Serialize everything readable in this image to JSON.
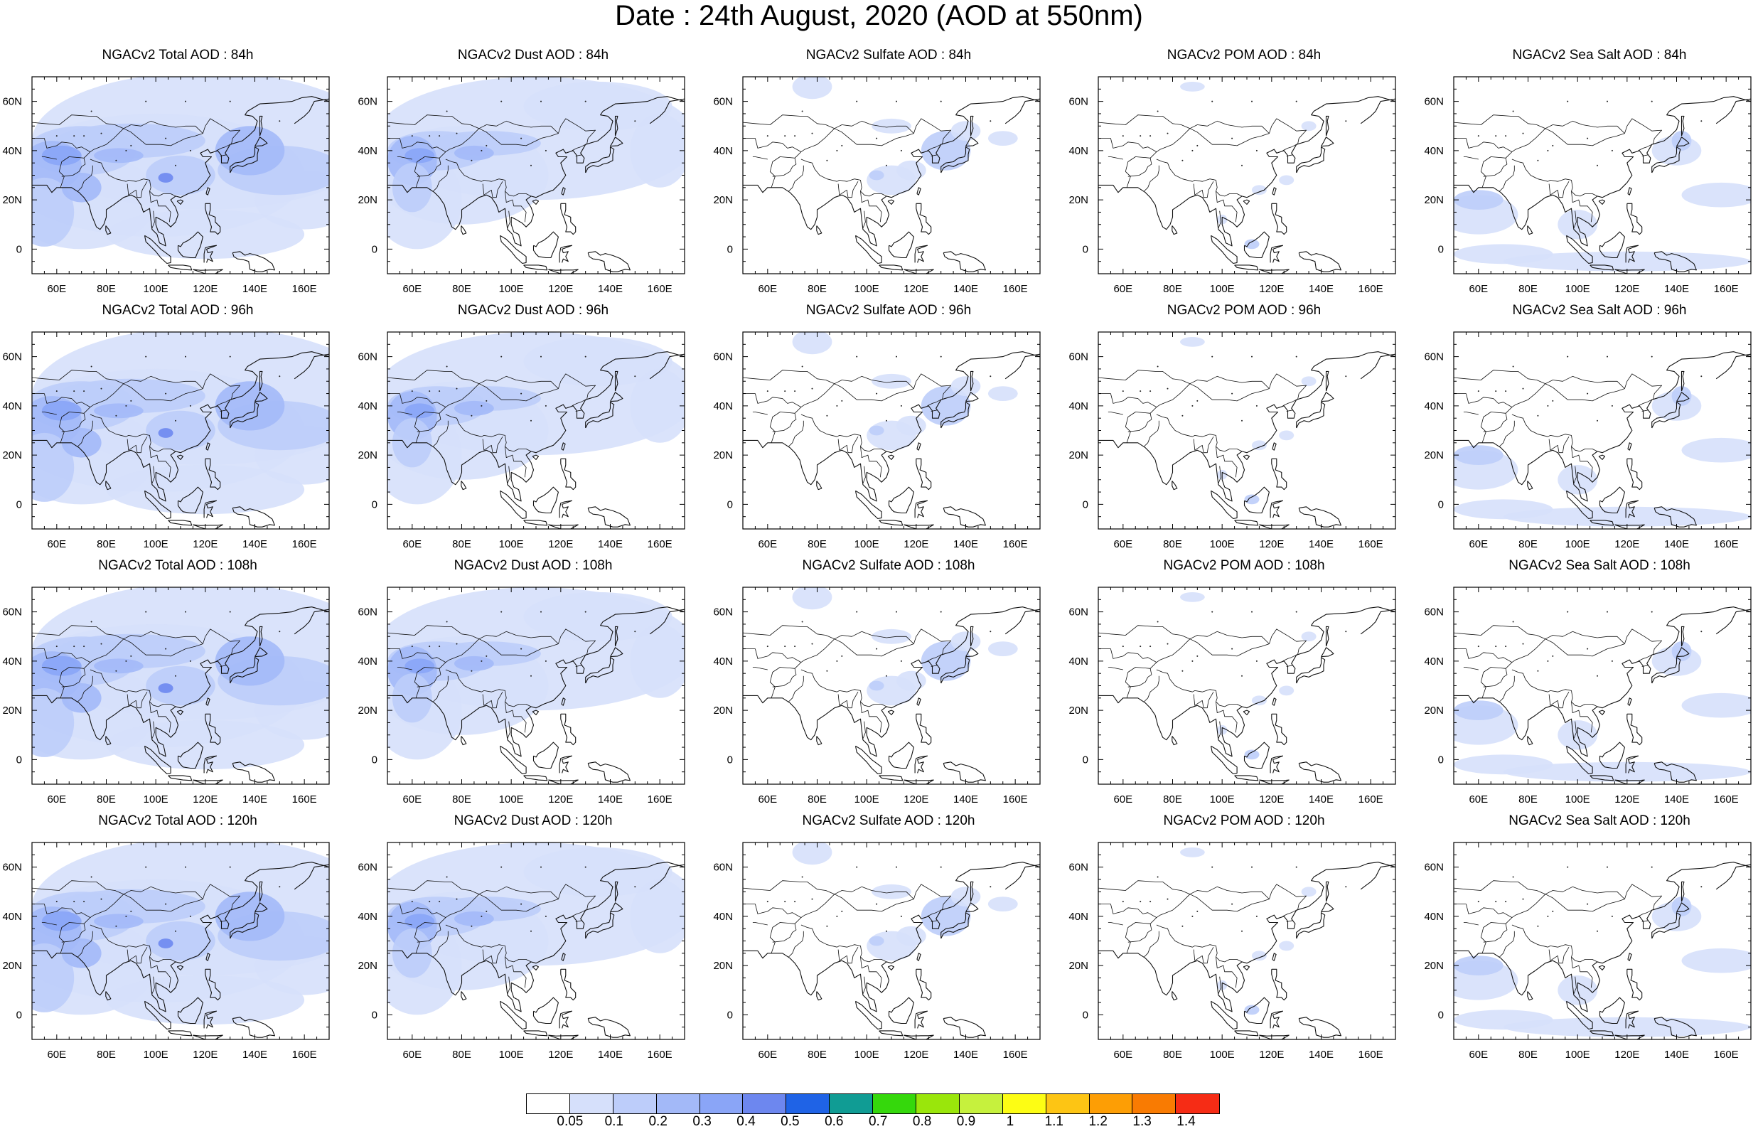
{
  "title": "Date : 24th August, 2020 (AOD at 550nm)",
  "panels": [
    {
      "title": "NGACv2 Total AOD : 84h",
      "field": "total"
    },
    {
      "title": "NGACv2 Dust AOD : 84h",
      "field": "dust"
    },
    {
      "title": "NGACv2 Sulfate AOD : 84h",
      "field": "sulfate"
    },
    {
      "title": "NGACv2 POM AOD : 84h",
      "field": "pom"
    },
    {
      "title": "NGACv2 Sea Salt AOD : 84h",
      "field": "seasalt"
    },
    {
      "title": "NGACv2 Total AOD : 96h",
      "field": "total"
    },
    {
      "title": "NGACv2 Dust AOD : 96h",
      "field": "dust"
    },
    {
      "title": "NGACv2 Sulfate AOD : 96h",
      "field": "sulfate"
    },
    {
      "title": "NGACv2 POM AOD : 96h",
      "field": "pom"
    },
    {
      "title": "NGACv2 Sea Salt AOD : 96h",
      "field": "seasalt"
    },
    {
      "title": "NGACv2 Total AOD : 108h",
      "field": "total"
    },
    {
      "title": "NGACv2 Dust AOD : 108h",
      "field": "dust"
    },
    {
      "title": "NGACv2 Sulfate AOD : 108h",
      "field": "sulfate"
    },
    {
      "title": "NGACv2 POM AOD : 108h",
      "field": "pom"
    },
    {
      "title": "NGACv2 Sea Salt AOD : 108h",
      "field": "seasalt"
    },
    {
      "title": "NGACv2 Total AOD : 120h",
      "field": "total"
    },
    {
      "title": "NGACv2 Dust AOD : 120h",
      "field": "dust"
    },
    {
      "title": "NGACv2 Sulfate AOD : 120h",
      "field": "sulfate"
    },
    {
      "title": "NGACv2 POM AOD : 120h",
      "field": "pom"
    },
    {
      "title": "NGACv2 Sea Salt  AOD : 120h",
      "field": "seasalt"
    }
  ],
  "lon_ticks": [
    "60E",
    "80E",
    "100E",
    "120E",
    "140E",
    "160E"
  ],
  "lat_ticks": [
    "60N",
    "40N",
    "20N",
    "0"
  ],
  "colorbar": {
    "labels": [
      "0.05",
      "0.1",
      "0.2",
      "0.3",
      "0.4",
      "0.5",
      "0.6",
      "0.7",
      "0.8",
      "0.9",
      "1",
      "1.1",
      "1.2",
      "1.3",
      "1.4"
    ],
    "colors": [
      "#ffffff",
      "#d6e0fb",
      "#bdcdfa",
      "#a3b9f8",
      "#8aa5f7",
      "#6d87ef",
      "#1f63e6",
      "#109c94",
      "#35d80c",
      "#9ae60b",
      "#c6f13d",
      "#fdfd14",
      "#fdc514",
      "#fd9e05",
      "#f97b02",
      "#f62c15"
    ]
  }
}
